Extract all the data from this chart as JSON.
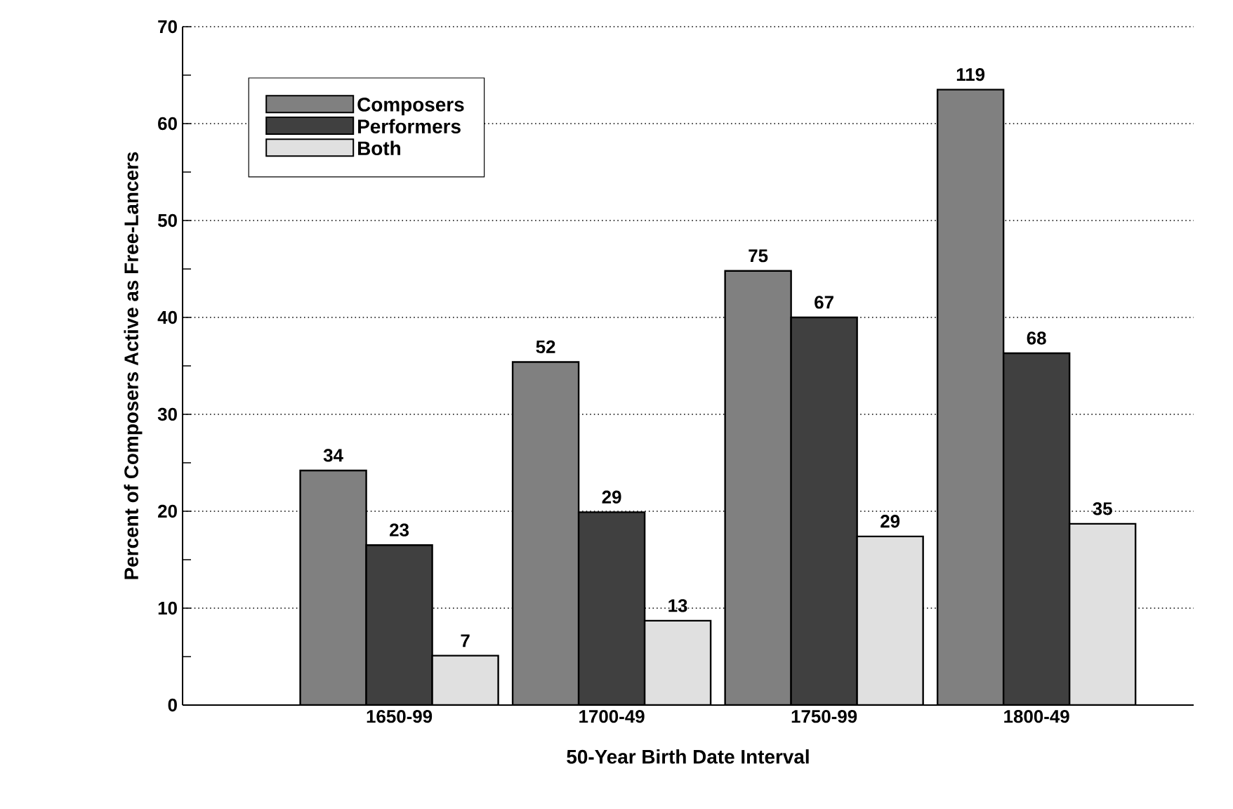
{
  "chart_data": {
    "type": "bar",
    "xlabel": "50-Year Birth Date Interval",
    "ylabel": "Percent of Composers Active as Free-Lancers",
    "categories": [
      "1650-99",
      "1700-49",
      "1750-99",
      "1800-49"
    ],
    "series": [
      {
        "name": "Composers",
        "color": "#808080",
        "values": [
          24.2,
          35.4,
          44.8,
          63.5
        ]
      },
      {
        "name": "Performers",
        "color": "#404040",
        "values": [
          16.5,
          19.9,
          40.0,
          36.3
        ]
      },
      {
        "name": "Both",
        "color": "#e0e0e0",
        "values": [
          5.1,
          8.7,
          17.4,
          18.7
        ]
      }
    ],
    "annotations": [
      "34",
      "52",
      "75",
      "119",
      "23",
      "29",
      "67",
      "68",
      "7",
      "13",
      "29",
      "35"
    ],
    "ylim": [
      0,
      70
    ],
    "yticks": [
      0,
      10,
      20,
      30,
      40,
      50,
      60,
      70
    ],
    "grid": "y",
    "line_style": "dotted",
    "legend": "top left"
  }
}
